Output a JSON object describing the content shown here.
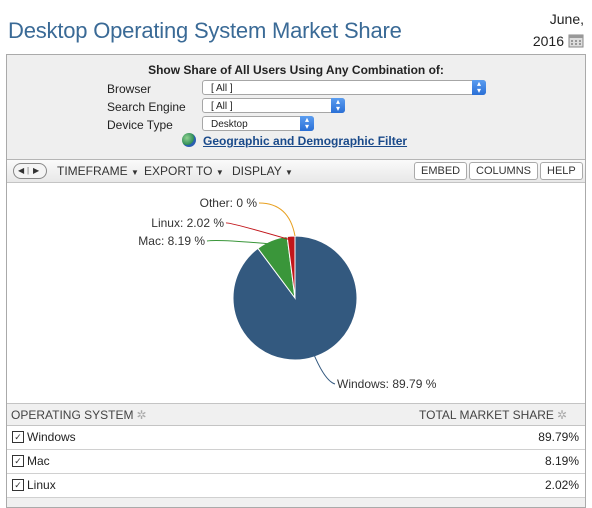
{
  "header": {
    "title": "Desktop Operating System Market Share",
    "date_month": "June,",
    "date_year": "2016",
    "calendar_icon": "calendar-icon"
  },
  "filter": {
    "heading": "Show Share of All Users Using Any Combination of:",
    "browser": {
      "label": "Browser",
      "value": "[ All ]"
    },
    "search_engine": {
      "label": "Search Engine",
      "value": "[ All ]"
    },
    "device_type": {
      "label": "Device Type",
      "value": "Desktop"
    },
    "geo_link": "Geographic and Demographic Filter"
  },
  "toolbar": {
    "timeframe": "TIMEFRAME",
    "export": "EXPORT TO",
    "display": "DISPLAY",
    "embed": "EMBED",
    "columns": "COLUMNS",
    "help": "HELP"
  },
  "chart_data": {
    "type": "pie",
    "slices": [
      {
        "label": "Windows: 89.79 %",
        "name": "Windows",
        "value": 89.79,
        "color": "#33597f"
      },
      {
        "label": "Mac: 8.19 %",
        "name": "Mac",
        "value": 8.19,
        "color": "#3a963a"
      },
      {
        "label": "Linux: 2.02 %",
        "name": "Linux",
        "value": 2.02,
        "color": "#c2161b"
      },
      {
        "label": "Other: 0 %",
        "name": "Other",
        "value": 0,
        "color": "#e8a020"
      }
    ]
  },
  "table": {
    "col1": "OPERATING SYSTEM",
    "col2": "TOTAL MARKET SHARE",
    "rows": [
      {
        "name": "Windows",
        "value": "89.79%"
      },
      {
        "name": "Mac",
        "value": "8.19%"
      },
      {
        "name": "Linux",
        "value": "2.02%"
      }
    ]
  }
}
